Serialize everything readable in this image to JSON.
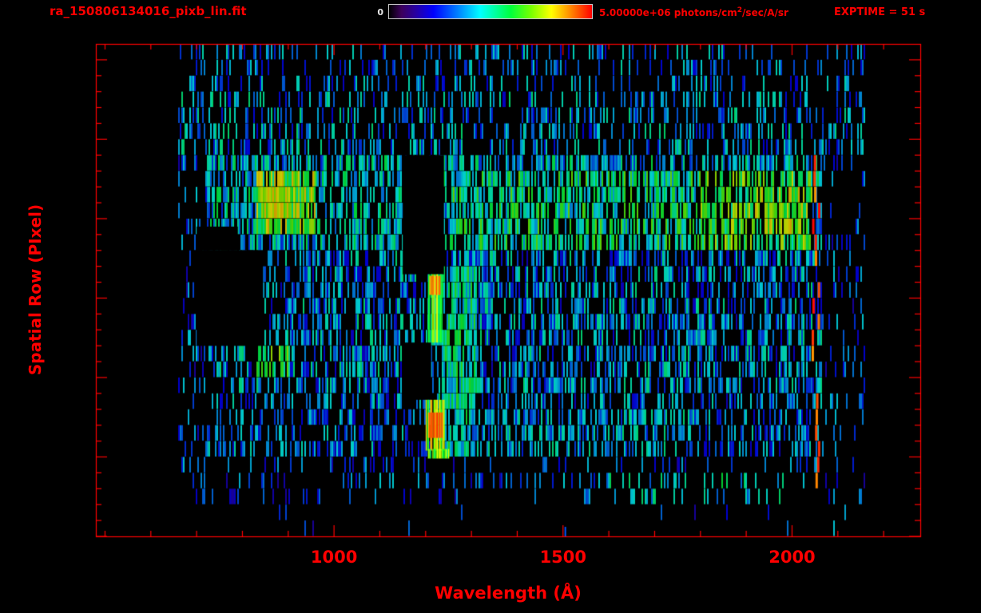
{
  "header": {
    "title": "ra_150806134016_pixb_lin.fit",
    "colorbar": {
      "min_label": "0",
      "max_label_pre": "5.00000e+06 photons/cm",
      "max_label_sup": "2",
      "max_label_post": "/sec/A/sr"
    },
    "exptime": "EXPTIME = 51 s"
  },
  "colors": {
    "background": "#000000",
    "axis": "#ff0000",
    "text_red": "#ff0000",
    "min_label": "#e8e8e8",
    "colorbar_border": "#c8c8c8"
  },
  "chart_data": {
    "type": "heatmap",
    "title": "ra_150806134016_pixb_lin.fit",
    "xlabel": "Wavelength (Å)",
    "ylabel": "Spatial Row (PIxel)",
    "xlim": [
      480,
      2280
    ],
    "ylim": [
      0,
      31
    ],
    "x_major_ticks": [
      1000,
      1500,
      2000
    ],
    "x_minor_step": 100,
    "y_major_ticks": [
      0,
      5,
      10,
      15,
      20,
      25,
      30
    ],
    "y_minor_step": 1,
    "n_rows": 31,
    "wavelength_range": [
      660,
      2160
    ],
    "colorbar": {
      "min": 0,
      "max": 5000000,
      "units": "photons/cm^2/sec/A/sr",
      "stops": [
        [
          0,
          "#000000"
        ],
        [
          0.06,
          "#3c005a"
        ],
        [
          0.13,
          "#2800a0"
        ],
        [
          0.22,
          "#0000ff"
        ],
        [
          0.34,
          "#0082ff"
        ],
        [
          0.45,
          "#00ffff"
        ],
        [
          0.6,
          "#00ff3c"
        ],
        [
          0.7,
          "#78ff00"
        ],
        [
          0.8,
          "#ffff00"
        ],
        [
          0.9,
          "#ff8200"
        ],
        [
          1,
          "#ff0000"
        ]
      ]
    },
    "seed": 1150806,
    "noise_bands": [
      {
        "wl": [
          660,
          2160
        ],
        "rows": [
          0,
          2
        ],
        "density": 0.02,
        "val": [
          0.15,
          0.35
        ]
      },
      {
        "wl": [
          660,
          2160
        ],
        "rows": [
          2,
          5
        ],
        "density": 0.13,
        "val": [
          0.15,
          0.45
        ]
      },
      {
        "wl": [
          660,
          2160
        ],
        "rows": [
          5,
          9
        ],
        "density": 0.4,
        "val": [
          0.18,
          0.5
        ]
      },
      {
        "wl": [
          660,
          2160
        ],
        "rows": [
          9,
          18
        ],
        "density": 0.5,
        "val": [
          0.18,
          0.55
        ]
      },
      {
        "wl": [
          660,
          2160
        ],
        "rows": [
          18,
          24
        ],
        "density": 0.6,
        "val": [
          0.25,
          0.6
        ]
      },
      {
        "wl": [
          660,
          2160
        ],
        "rows": [
          24,
          28
        ],
        "density": 0.3,
        "val": [
          0.2,
          0.55
        ]
      },
      {
        "wl": [
          660,
          2160
        ],
        "rows": [
          28,
          31
        ],
        "density": 0.2,
        "val": [
          0.2,
          0.5
        ]
      }
    ],
    "refinements": [
      {
        "wl": [
          660,
          720
        ],
        "rows": [
          2,
          24
        ],
        "density": 0.18,
        "val": [
          0.15,
          0.45
        ]
      },
      {
        "wl": [
          2065,
          2160
        ],
        "rows": [
          2,
          24
        ],
        "density": 0.12,
        "val": [
          0.15,
          0.45
        ]
      },
      {
        "wl": [
          960,
          1150
        ],
        "rows": [
          18,
          23
        ],
        "density": 0.55,
        "val": [
          0.3,
          0.6
        ]
      },
      {
        "wl": [
          830,
          960
        ],
        "rows": [
          19,
          23
        ],
        "density": 0.92,
        "val": [
          0.5,
          0.85
        ]
      },
      {
        "wl": [
          845,
          905
        ],
        "rows": [
          20,
          22.5
        ],
        "density": 0.95,
        "val": [
          0.65,
          0.92
        ]
      },
      {
        "wl": [
          1250,
          2042
        ],
        "rows": [
          18,
          23
        ],
        "density": 0.6,
        "val": [
          0.35,
          0.7
        ]
      },
      {
        "wl": [
          1800,
          2042
        ],
        "rows": [
          18,
          23
        ],
        "density": 0.65,
        "val": [
          0.45,
          0.8
        ]
      },
      {
        "wl": [
          1900,
          2042
        ],
        "rows": [
          19,
          22
        ],
        "density": 0.7,
        "val": [
          0.5,
          0.85
        ]
      },
      {
        "wl": [
          1225,
          1310
        ],
        "rows": [
          5,
          17
        ],
        "density": 0.75,
        "val": [
          0.35,
          0.65
        ]
      },
      {
        "wl": [
          830,
          900
        ],
        "rows": [
          10,
          12
        ],
        "density": 0.7,
        "val": [
          0.4,
          0.75
        ]
      },
      {
        "wl": [
          1300,
          1800
        ],
        "rows": [
          5,
          8
        ],
        "density": 0.45,
        "val": [
          0.25,
          0.55
        ]
      },
      {
        "wl": [
          1600,
          2000
        ],
        "rows": [
          2,
          4
        ],
        "density": 0.2,
        "val": [
          0.3,
          0.6
        ]
      },
      {
        "wl": [
          2080,
          2120
        ],
        "rows": [
          0,
          2.5
        ],
        "density": 0.25,
        "val": [
          0.2,
          0.45
        ]
      }
    ],
    "black_blocks": [
      {
        "wl": [
          700,
          845
        ],
        "rows": [
          12,
          18
        ]
      },
      {
        "wl": [
          700,
          790
        ],
        "rows": [
          18,
          19.5
        ]
      },
      {
        "wl": [
          1150,
          1240
        ],
        "rows": [
          16.5,
          24
        ]
      },
      {
        "wl": [
          1150,
          1212
        ],
        "rows": [
          8.6,
          12.2
        ]
      }
    ],
    "bright_features": [
      {
        "wl": [
          1205,
          1235
        ],
        "rows": [
          12.2,
          16.5
        ],
        "density": 0.92,
        "val": [
          0.5,
          0.8
        ]
      },
      {
        "wl": [
          1208,
          1232
        ],
        "rows": [
          15.2,
          16.4
        ],
        "density": 1,
        "val": [
          0.82,
          0.95
        ]
      },
      {
        "wl": [
          1200,
          1240
        ],
        "rows": [
          5.4,
          8.6
        ],
        "density": 0.92,
        "val": [
          0.6,
          0.9
        ]
      },
      {
        "wl": [
          1205,
          1235
        ],
        "rows": [
          6.2,
          7.8
        ],
        "density": 1,
        "val": [
          0.86,
          0.97
        ]
      },
      {
        "wl": [
          1205,
          1250
        ],
        "rows": [
          4.9,
          5.5
        ],
        "density": 0.85,
        "val": [
          0.55,
          0.8
        ]
      }
    ],
    "red_column": {
      "wl": [
        2042,
        2062
      ],
      "rows": [
        2.5,
        24
      ],
      "density": 0.55,
      "val": [
        0.88,
        1.0
      ]
    },
    "marks": [
      {
        "wl": 1505,
        "rows": [
          0,
          0.6
        ],
        "val": 0.3
      }
    ]
  }
}
